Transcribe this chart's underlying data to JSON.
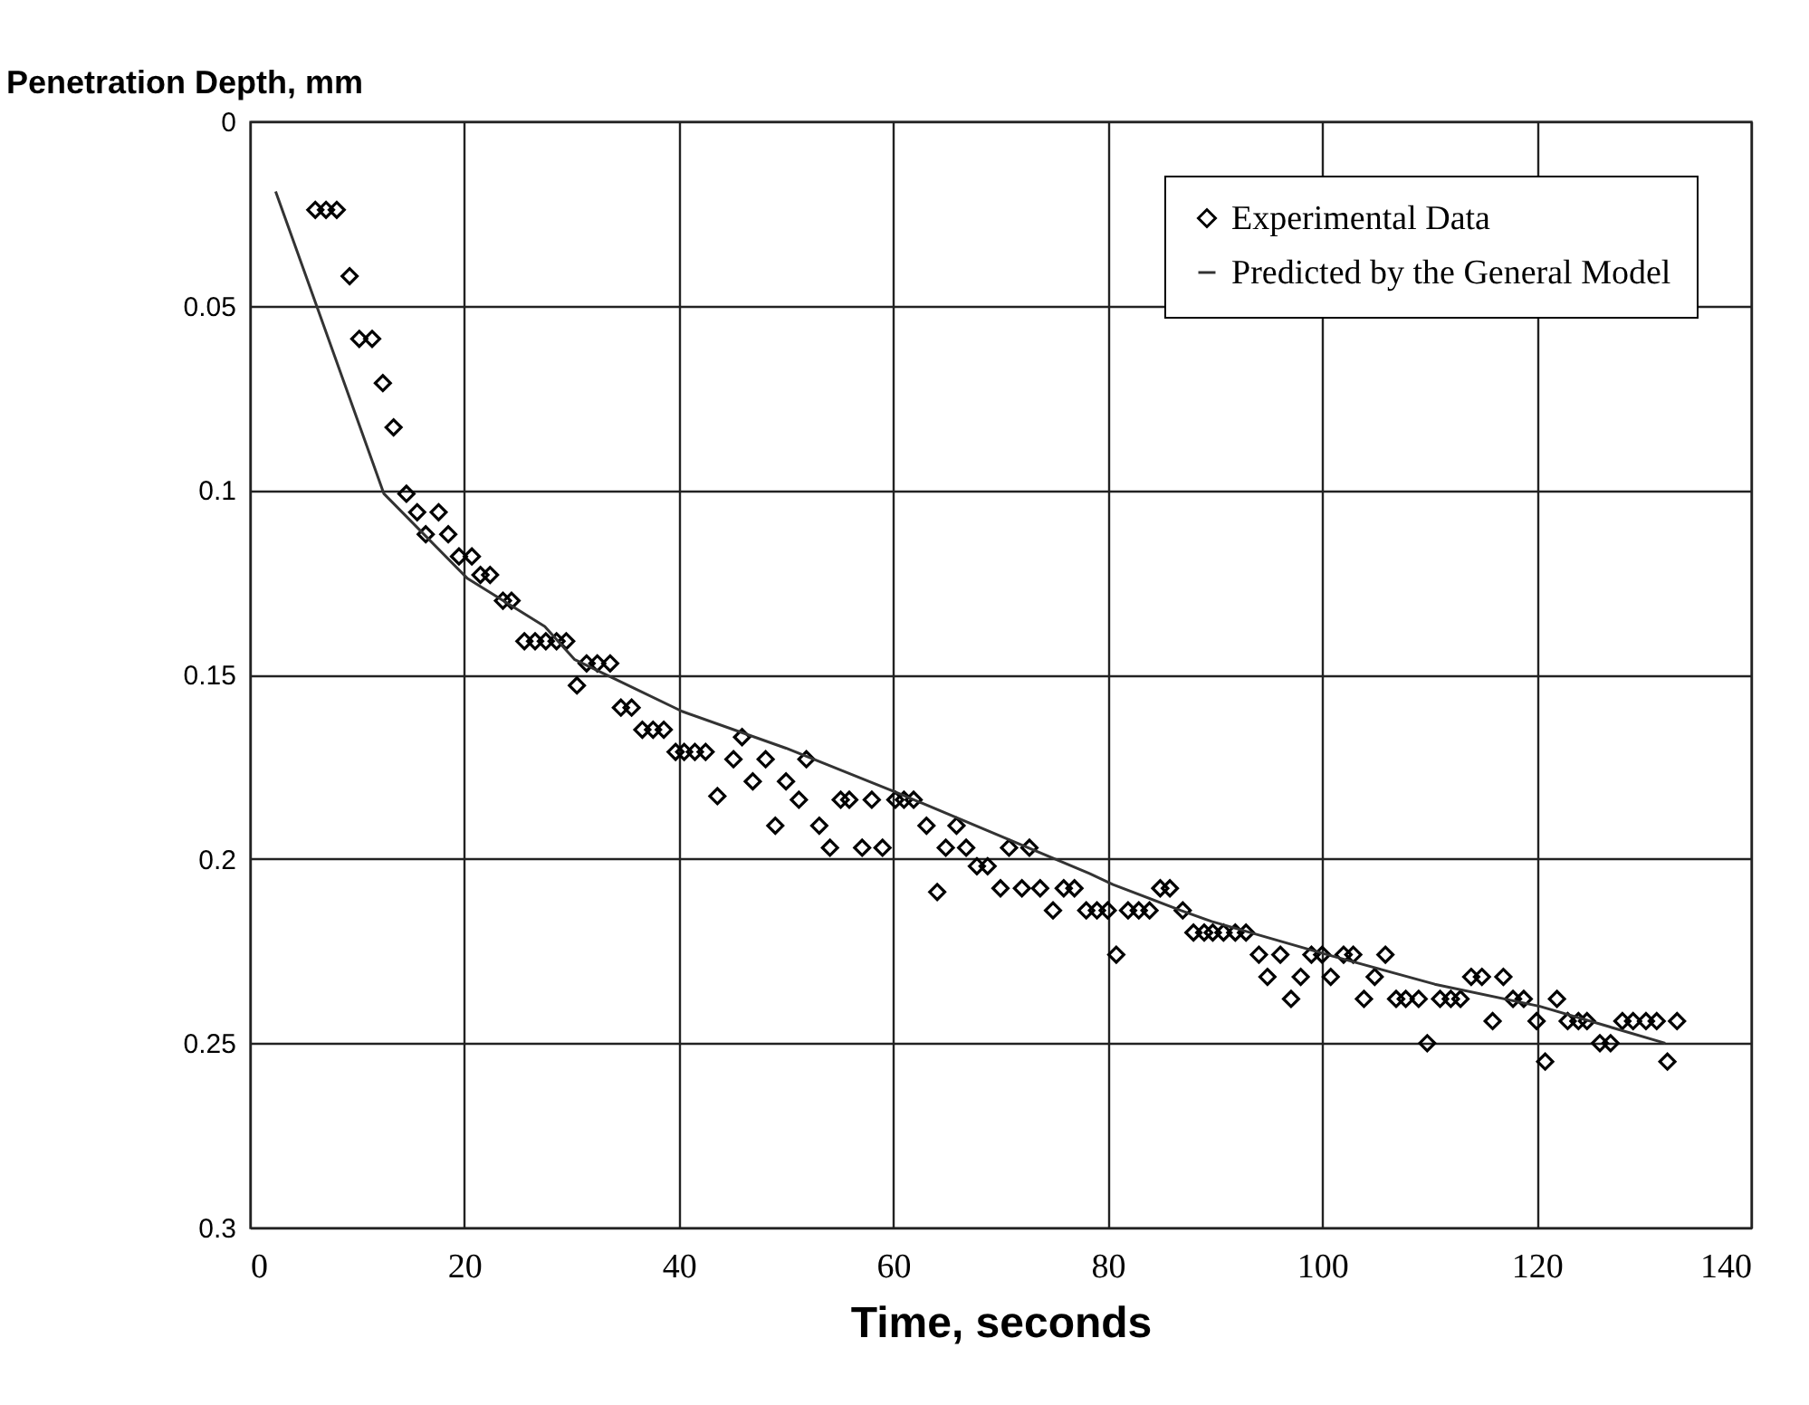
{
  "chart_data": {
    "type": "scatter",
    "xlabel": "Time, seconds",
    "ylabel": "Penetration Depth, mm",
    "xlim": [
      0,
      140
    ],
    "xticks": [
      0,
      20,
      40,
      60,
      80,
      100,
      120,
      140
    ],
    "ylim": [
      0.3,
      0
    ],
    "yticks": [
      0,
      0.05,
      0.1,
      0.15,
      0.2,
      0.25,
      0.3
    ],
    "grid": true,
    "legend": "top right",
    "series": [
      {
        "name": "Experimental Data",
        "marker": "diamond",
        "color": "#000000",
        "x": [
          6.1,
          7.1,
          8.1,
          9.3,
          10.2,
          11.4,
          12.4,
          13.4,
          14.6,
          15.6,
          17.6,
          16.4,
          18.5,
          19.5,
          20.7,
          21.5,
          22.4,
          23.6,
          24.4,
          25.6,
          26.6,
          27.6,
          28.6,
          29.5,
          30.5,
          31.4,
          32.4,
          33.6,
          34.6,
          35.6,
          36.6,
          37.6,
          38.6,
          39.7,
          40.5,
          41.5,
          42.5,
          43.6,
          45.1,
          45.9,
          46.9,
          48.1,
          49.0,
          50.0,
          51.2,
          51.9,
          53.1,
          54.1,
          55.1,
          55.9,
          57.1,
          58.0,
          59.0,
          60.2,
          61.0,
          61.9,
          63.1,
          64.1,
          64.9,
          65.9,
          66.8,
          67.8,
          68.8,
          70.0,
          70.8,
          72.0,
          72.7,
          73.7,
          74.9,
          75.9,
          76.9,
          78.0,
          79.0,
          80.0,
          80.8,
          81.9,
          82.9,
          83.9,
          84.9,
          85.8,
          87.0,
          88.0,
          89.0,
          89.8,
          90.8,
          91.9,
          92.9,
          94.1,
          94.9,
          96.1,
          97.1,
          98.0,
          99.0,
          100.0,
          100.8,
          102.0,
          102.9,
          103.9,
          104.9,
          105.9,
          106.9,
          107.8,
          109.0,
          109.8,
          111.0,
          112.0,
          112.9,
          113.9,
          114.9,
          115.9,
          116.9,
          117.8,
          118.8,
          120.0,
          120.8,
          121.9,
          122.9,
          123.9,
          124.7,
          125.9,
          126.9,
          128.0,
          129.0,
          130.2,
          131.2,
          132.2,
          133.1
        ],
        "values": [
          0.024,
          0.024,
          0.024,
          0.042,
          0.059,
          0.059,
          0.071,
          0.083,
          0.101,
          0.106,
          0.106,
          0.112,
          0.112,
          0.118,
          0.118,
          0.123,
          0.123,
          0.13,
          0.13,
          0.141,
          0.141,
          0.141,
          0.141,
          0.141,
          0.153,
          0.147,
          0.147,
          0.147,
          0.159,
          0.159,
          0.165,
          0.165,
          0.165,
          0.171,
          0.171,
          0.171,
          0.171,
          0.183,
          0.173,
          0.167,
          0.179,
          0.173,
          0.191,
          0.179,
          0.184,
          0.173,
          0.191,
          0.197,
          0.184,
          0.184,
          0.197,
          0.184,
          0.197,
          0.184,
          0.184,
          0.184,
          0.191,
          0.209,
          0.197,
          0.191,
          0.197,
          0.202,
          0.202,
          0.208,
          0.197,
          0.208,
          0.197,
          0.208,
          0.214,
          0.208,
          0.208,
          0.214,
          0.214,
          0.214,
          0.226,
          0.214,
          0.214,
          0.214,
          0.208,
          0.208,
          0.214,
          0.22,
          0.22,
          0.22,
          0.22,
          0.22,
          0.22,
          0.226,
          0.232,
          0.226,
          0.238,
          0.232,
          0.226,
          0.226,
          0.232,
          0.226,
          0.226,
          0.238,
          0.232,
          0.226,
          0.238,
          0.238,
          0.238,
          0.25,
          0.238,
          0.238,
          0.238,
          0.232,
          0.232,
          0.244,
          0.232,
          0.238,
          0.238,
          0.244,
          0.255,
          0.238,
          0.244,
          0.244,
          0.244,
          0.25,
          0.25,
          0.244,
          0.244,
          0.244,
          0.244,
          0.255,
          0.244
        ]
      },
      {
        "name": "Predicted by the General Model",
        "type": "line",
        "marker": "none",
        "color": "#333333",
        "x": [
          2.4,
          12.5,
          20.3,
          27.5,
          30.3,
          40.3,
          50.0,
          60.3,
          78.3,
          80.5,
          86.8,
          89.7,
          100.5,
          110.5,
          120.3,
          132.0
        ],
        "values": [
          0.019,
          0.101,
          0.124,
          0.137,
          0.146,
          0.16,
          0.17,
          0.182,
          0.204,
          0.207,
          0.214,
          0.217,
          0.226,
          0.234,
          0.24,
          0.25
        ]
      }
    ]
  }
}
